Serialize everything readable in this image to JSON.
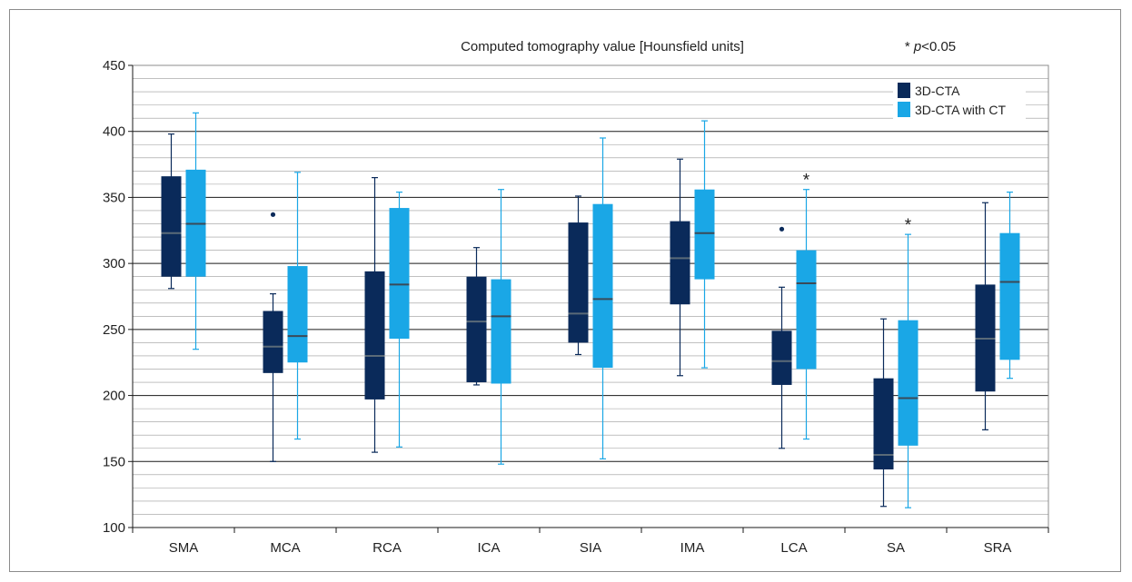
{
  "chart_data": {
    "type": "box",
    "title": "Computed tomography value [Hounsfield units]",
    "significance_note": "* p<0.05",
    "significance_symbol": "*",
    "categories": [
      "SMA",
      "MCA",
      "RCA",
      "ICA",
      "SIA",
      "IMA",
      "LCA",
      "SA",
      "SRA"
    ],
    "ylim": [
      100,
      450
    ],
    "yticks": [
      100,
      150,
      200,
      250,
      300,
      350,
      400,
      450
    ],
    "minor_grid_step": 10,
    "grid": true,
    "legend_position": "top-right",
    "significant_categories": [
      "LCA",
      "SA"
    ],
    "series": [
      {
        "name": "3D-CTA",
        "color": "#0a2a5a",
        "boxes": [
          {
            "min": 281,
            "q1": 290,
            "median": 323,
            "q3": 366,
            "max": 398,
            "outliers": []
          },
          {
            "min": 150,
            "q1": 217,
            "median": 237,
            "q3": 264,
            "max": 277,
            "outliers": [
              337
            ]
          },
          {
            "min": 157,
            "q1": 197,
            "median": 230,
            "q3": 294,
            "max": 365,
            "outliers": []
          },
          {
            "min": 208,
            "q1": 210,
            "median": 256,
            "q3": 290,
            "max": 312,
            "outliers": []
          },
          {
            "min": 231,
            "q1": 240,
            "median": 262,
            "q3": 331,
            "max": 351,
            "outliers": []
          },
          {
            "min": 215,
            "q1": 269,
            "median": 304,
            "q3": 332,
            "max": 379,
            "outliers": []
          },
          {
            "min": 160,
            "q1": 208,
            "median": 226,
            "q3": 249,
            "max": 282,
            "outliers": [
              326
            ]
          },
          {
            "min": 116,
            "q1": 144,
            "median": 155,
            "q3": 213,
            "max": 258,
            "outliers": []
          },
          {
            "min": 174,
            "q1": 203,
            "median": 243,
            "q3": 284,
            "max": 346,
            "outliers": []
          }
        ]
      },
      {
        "name": "3D-CTA with CT",
        "color": "#1aa7e6",
        "boxes": [
          {
            "min": 235,
            "q1": 290,
            "median": 330,
            "q3": 371,
            "max": 414,
            "outliers": []
          },
          {
            "min": 167,
            "q1": 225,
            "median": 245,
            "q3": 298,
            "max": 369,
            "outliers": []
          },
          {
            "min": 161,
            "q1": 243,
            "median": 284,
            "q3": 342,
            "max": 354,
            "outliers": []
          },
          {
            "min": 148,
            "q1": 209,
            "median": 260,
            "q3": 288,
            "max": 356,
            "outliers": []
          },
          {
            "min": 152,
            "q1": 221,
            "median": 273,
            "q3": 345,
            "max": 395,
            "outliers": []
          },
          {
            "min": 221,
            "q1": 288,
            "median": 323,
            "q3": 356,
            "max": 408,
            "outliers": []
          },
          {
            "min": 167,
            "q1": 220,
            "median": 285,
            "q3": 310,
            "max": 356,
            "outliers": []
          },
          {
            "min": 115,
            "q1": 162,
            "median": 198,
            "q3": 257,
            "max": 322,
            "outliers": []
          },
          {
            "min": 213,
            "q1": 227,
            "median": 286,
            "q3": 323,
            "max": 354,
            "outliers": []
          }
        ]
      }
    ]
  }
}
